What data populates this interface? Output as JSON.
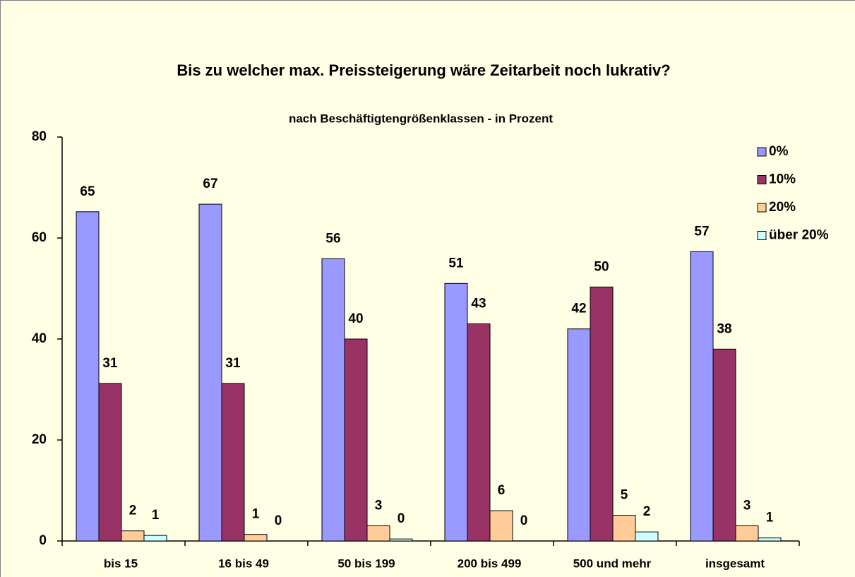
{
  "chart_data": {
    "type": "bar",
    "title": "Bis zu welcher max. Preissteigerung wäre Zeitarbeit noch lukrativ?",
    "subtitle": "nach Beschäftigtengrößenklassen - in Prozent",
    "categories": [
      "bis 15",
      "16 bis 49",
      "50 bis 199",
      "200 bis 499",
      "500 und mehr",
      "insgesamt"
    ],
    "series": [
      {
        "name": "0%",
        "color": "#9999ff",
        "values": [
          65.2,
          66.7,
          55.9,
          51,
          42,
          57.3
        ],
        "value_labels": [
          "65",
          "67",
          "56",
          "51",
          "42",
          "57"
        ]
      },
      {
        "name": "10%",
        "color": "#993366",
        "values": [
          31.2,
          31.2,
          40,
          43,
          50.3,
          38
        ],
        "value_labels": [
          "31",
          "31",
          "40",
          "43",
          "50",
          "38"
        ]
      },
      {
        "name": "20%",
        "color": "#ffcc99",
        "values": [
          2,
          1.3,
          3,
          6,
          5.1,
          3
        ],
        "value_labels": [
          "2",
          "1",
          "3",
          "6",
          "5",
          "3"
        ]
      },
      {
        "name": "über 20%",
        "color": "#ccffff",
        "values": [
          1.1,
          0,
          0.4,
          0,
          1.8,
          0.6
        ],
        "value_labels": [
          "1",
          "0",
          "0",
          "0",
          "2",
          "1"
        ]
      }
    ],
    "ylim": [
      0,
      80
    ],
    "yticks": [
      0,
      20,
      40,
      60,
      80
    ],
    "grid": false,
    "legend": "top-right"
  }
}
